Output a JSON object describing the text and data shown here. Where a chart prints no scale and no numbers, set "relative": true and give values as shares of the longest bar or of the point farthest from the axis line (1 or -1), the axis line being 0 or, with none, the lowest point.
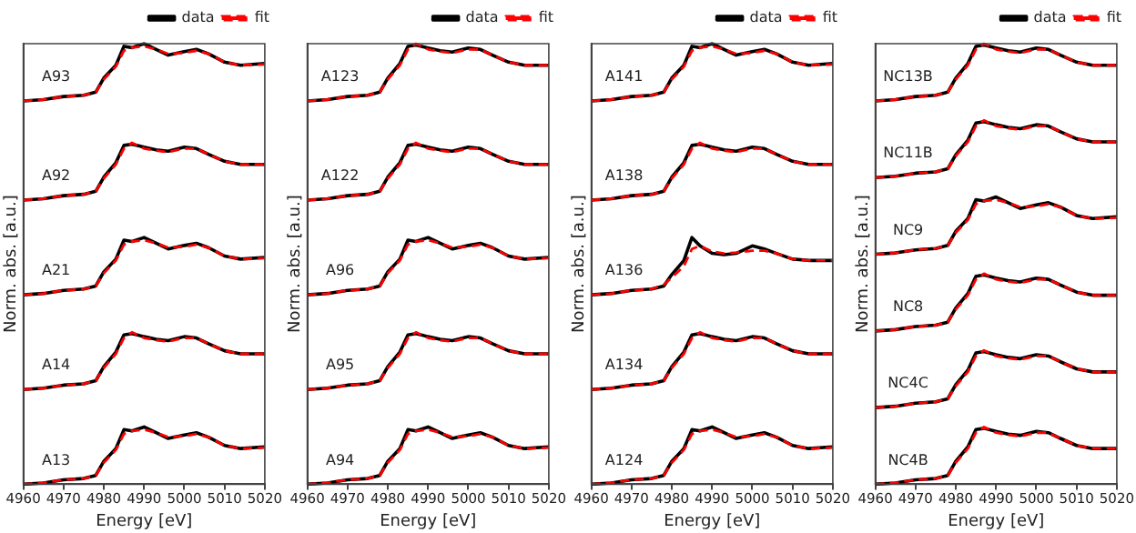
{
  "chart_data": [
    {
      "type": "line",
      "x": [
        4960,
        4965,
        4970,
        4975,
        4978,
        4980,
        4983,
        4985,
        4987,
        4990,
        4993,
        4996,
        5000,
        5003,
        5006,
        5010,
        5014,
        5020
      ],
      "xlim": [
        4960,
        5020
      ],
      "xticks": [
        4960,
        4970,
        4980,
        4990,
        5000,
        5010,
        5020
      ],
      "xlabel": "Energy [eV]",
      "ylabel": "Norm. abs. [a.u.]",
      "relative": true,
      "tick_labels": "x",
      "legend": "top right",
      "marker": "none",
      "grid": false,
      "series": [
        {
          "name": "data",
          "color": "#000000",
          "line_style": "solid",
          "values": [
            0.87,
            0.873,
            0.88,
            0.883,
            0.89,
            0.922,
            0.951,
            0.994,
            0.991,
            1.0,
            0.987,
            0.974,
            0.982,
            0.987,
            0.977,
            0.958,
            0.951,
            0.955
          ]
        },
        {
          "name": "fit",
          "color": "#ff0000",
          "line_style": "dashed",
          "values": [
            0.87,
            0.873,
            0.88,
            0.883,
            0.89,
            0.919,
            0.948,
            0.984,
            0.991,
            0.994,
            0.987,
            0.977,
            0.979,
            0.984,
            0.977,
            0.958,
            0.951,
            0.953
          ]
        },
        {
          "color": "#000000",
          "line_style": "solid",
          "values": [
            0.645,
            0.648,
            0.655,
            0.658,
            0.665,
            0.697,
            0.73,
            0.769,
            0.772,
            0.765,
            0.759,
            0.756,
            0.765,
            0.762,
            0.749,
            0.733,
            0.726,
            0.726
          ]
        },
        {
          "color": "#ff0000",
          "line_style": "dashed",
          "values": [
            0.645,
            0.648,
            0.655,
            0.658,
            0.665,
            0.694,
            0.726,
            0.762,
            0.775,
            0.762,
            0.757,
            0.754,
            0.762,
            0.762,
            0.749,
            0.733,
            0.726,
            0.726
          ]
        },
        {
          "color": "#000000",
          "line_style": "solid",
          "values": [
            0.43,
            0.433,
            0.44,
            0.443,
            0.45,
            0.482,
            0.511,
            0.554,
            0.551,
            0.56,
            0.547,
            0.534,
            0.542,
            0.547,
            0.537,
            0.518,
            0.511,
            0.515
          ]
        },
        {
          "color": "#ff0000",
          "line_style": "dashed",
          "values": [
            0.43,
            0.433,
            0.44,
            0.443,
            0.45,
            0.479,
            0.508,
            0.544,
            0.551,
            0.554,
            0.547,
            0.537,
            0.539,
            0.544,
            0.537,
            0.518,
            0.511,
            0.513
          ]
        },
        {
          "color": "#000000",
          "line_style": "solid",
          "values": [
            0.215,
            0.218,
            0.225,
            0.228,
            0.235,
            0.267,
            0.3,
            0.339,
            0.342,
            0.335,
            0.329,
            0.326,
            0.335,
            0.332,
            0.319,
            0.303,
            0.296,
            0.296
          ]
        },
        {
          "color": "#ff0000",
          "line_style": "dashed",
          "values": [
            0.215,
            0.218,
            0.225,
            0.228,
            0.235,
            0.264,
            0.296,
            0.332,
            0.345,
            0.332,
            0.327,
            0.324,
            0.332,
            0.332,
            0.319,
            0.303,
            0.296,
            0.296
          ]
        },
        {
          "color": "#000000",
          "line_style": "solid",
          "values": [
            0,
            0.003,
            0.01,
            0.013,
            0.02,
            0.052,
            0.081,
            0.124,
            0.121,
            0.13,
            0.117,
            0.104,
            0.112,
            0.117,
            0.107,
            0.088,
            0.081,
            0.085
          ]
        },
        {
          "color": "#ff0000",
          "line_style": "dashed",
          "values": [
            0,
            0.003,
            0.01,
            0.013,
            0.02,
            0.049,
            0.078,
            0.114,
            0.121,
            0.124,
            0.117,
            0.107,
            0.109,
            0.114,
            0.107,
            0.088,
            0.081,
            0.083
          ]
        }
      ],
      "annotations": [
        "A93",
        "A92",
        "A21",
        "A14",
        "A13"
      ]
    },
    {
      "type": "line",
      "x": [
        4960,
        4965,
        4970,
        4975,
        4978,
        4980,
        4983,
        4985,
        4987,
        4990,
        4993,
        4996,
        5000,
        5003,
        5006,
        5010,
        5014,
        5020
      ],
      "xlim": [
        4960,
        5020
      ],
      "xticks": [
        4960,
        4970,
        4980,
        4990,
        5000,
        5010,
        5020
      ],
      "xlabel": "Energy [eV]",
      "ylabel": "Norm. abs. [a.u.]",
      "relative": true,
      "tick_labels": "x",
      "legend": "top right",
      "marker": "none",
      "grid": false,
      "series": [
        {
          "name": "data",
          "color": "#000000",
          "line_style": "solid",
          "values": [
            0.87,
            0.873,
            0.88,
            0.883,
            0.89,
            0.922,
            0.955,
            0.994,
            0.997,
            0.99,
            0.984,
            0.981,
            0.99,
            0.987,
            0.974,
            0.958,
            0.951,
            0.951
          ]
        },
        {
          "name": "fit",
          "color": "#ff0000",
          "line_style": "dashed",
          "values": [
            0.87,
            0.873,
            0.88,
            0.883,
            0.89,
            0.919,
            0.951,
            0.987,
            1.0,
            0.987,
            0.982,
            0.979,
            0.987,
            0.987,
            0.974,
            0.958,
            0.951,
            0.951
          ]
        },
        {
          "color": "#000000",
          "line_style": "solid",
          "values": [
            0.645,
            0.648,
            0.655,
            0.658,
            0.665,
            0.697,
            0.73,
            0.769,
            0.772,
            0.765,
            0.759,
            0.756,
            0.765,
            0.762,
            0.749,
            0.733,
            0.726,
            0.726
          ]
        },
        {
          "color": "#ff0000",
          "line_style": "dashed",
          "values": [
            0.645,
            0.648,
            0.655,
            0.658,
            0.665,
            0.694,
            0.726,
            0.762,
            0.775,
            0.762,
            0.757,
            0.754,
            0.762,
            0.762,
            0.749,
            0.733,
            0.726,
            0.726
          ]
        },
        {
          "color": "#000000",
          "line_style": "solid",
          "values": [
            0.43,
            0.433,
            0.44,
            0.443,
            0.45,
            0.482,
            0.511,
            0.554,
            0.551,
            0.56,
            0.547,
            0.534,
            0.542,
            0.547,
            0.537,
            0.518,
            0.511,
            0.515
          ]
        },
        {
          "color": "#ff0000",
          "line_style": "dashed",
          "values": [
            0.43,
            0.433,
            0.44,
            0.443,
            0.45,
            0.479,
            0.508,
            0.544,
            0.551,
            0.554,
            0.547,
            0.537,
            0.539,
            0.544,
            0.537,
            0.518,
            0.511,
            0.513
          ]
        },
        {
          "color": "#000000",
          "line_style": "solid",
          "values": [
            0.215,
            0.218,
            0.225,
            0.228,
            0.235,
            0.267,
            0.3,
            0.339,
            0.342,
            0.335,
            0.329,
            0.326,
            0.335,
            0.332,
            0.319,
            0.303,
            0.296,
            0.296
          ]
        },
        {
          "color": "#ff0000",
          "line_style": "dashed",
          "values": [
            0.215,
            0.218,
            0.225,
            0.228,
            0.235,
            0.264,
            0.296,
            0.332,
            0.345,
            0.332,
            0.327,
            0.324,
            0.332,
            0.332,
            0.319,
            0.303,
            0.296,
            0.296
          ]
        },
        {
          "color": "#000000",
          "line_style": "solid",
          "values": [
            0,
            0.003,
            0.01,
            0.013,
            0.02,
            0.052,
            0.081,
            0.124,
            0.121,
            0.13,
            0.117,
            0.104,
            0.112,
            0.117,
            0.107,
            0.088,
            0.081,
            0.085
          ]
        },
        {
          "color": "#ff0000",
          "line_style": "dashed",
          "values": [
            0,
            0.003,
            0.01,
            0.013,
            0.02,
            0.049,
            0.078,
            0.114,
            0.121,
            0.124,
            0.117,
            0.107,
            0.109,
            0.114,
            0.107,
            0.088,
            0.081,
            0.083
          ]
        }
      ],
      "annotations": [
        "A123",
        "A122",
        "A96",
        "A95",
        "A94"
      ]
    },
    {
      "type": "line",
      "x": [
        4960,
        4965,
        4970,
        4975,
        4978,
        4980,
        4983,
        4985,
        4987,
        4990,
        4993,
        4996,
        5000,
        5003,
        5006,
        5010,
        5014,
        5020
      ],
      "xlim": [
        4960,
        5020
      ],
      "xticks": [
        4960,
        4970,
        4980,
        4990,
        5000,
        5010,
        5020
      ],
      "xlabel": "Energy [eV]",
      "ylabel": "Norm. abs. [a.u.]",
      "relative": true,
      "tick_labels": "x",
      "legend": "top right",
      "marker": "none",
      "grid": false,
      "series": [
        {
          "name": "data",
          "color": "#000000",
          "line_style": "solid",
          "values": [
            0.87,
            0.873,
            0.88,
            0.883,
            0.89,
            0.922,
            0.951,
            0.994,
            0.991,
            1.0,
            0.987,
            0.974,
            0.982,
            0.987,
            0.977,
            0.958,
            0.951,
            0.955
          ]
        },
        {
          "name": "fit",
          "color": "#ff0000",
          "line_style": "dashed",
          "values": [
            0.87,
            0.873,
            0.88,
            0.883,
            0.89,
            0.919,
            0.948,
            0.984,
            0.991,
            0.994,
            0.987,
            0.977,
            0.979,
            0.984,
            0.977,
            0.958,
            0.951,
            0.953
          ]
        },
        {
          "color": "#000000",
          "line_style": "solid",
          "values": [
            0.645,
            0.648,
            0.655,
            0.658,
            0.665,
            0.697,
            0.73,
            0.769,
            0.772,
            0.765,
            0.759,
            0.756,
            0.765,
            0.762,
            0.749,
            0.733,
            0.726,
            0.726
          ]
        },
        {
          "color": "#ff0000",
          "line_style": "dashed",
          "values": [
            0.645,
            0.648,
            0.655,
            0.658,
            0.665,
            0.694,
            0.726,
            0.762,
            0.775,
            0.762,
            0.757,
            0.754,
            0.762,
            0.762,
            0.749,
            0.733,
            0.726,
            0.726
          ]
        },
        {
          "color": "#000000",
          "line_style": "solid",
          "values": [
            0.43,
            0.433,
            0.44,
            0.443,
            0.45,
            0.476,
            0.508,
            0.56,
            0.541,
            0.524,
            0.521,
            0.524,
            0.541,
            0.534,
            0.524,
            0.511,
            0.508,
            0.508
          ]
        },
        {
          "color": "#ff0000",
          "line_style": "dashed",
          "values": [
            0.43,
            0.433,
            0.44,
            0.443,
            0.453,
            0.469,
            0.495,
            0.534,
            0.541,
            0.528,
            0.524,
            0.526,
            0.53,
            0.53,
            0.524,
            0.511,
            0.508,
            0.508
          ]
        },
        {
          "color": "#000000",
          "line_style": "solid",
          "values": [
            0.215,
            0.218,
            0.225,
            0.228,
            0.235,
            0.267,
            0.3,
            0.339,
            0.342,
            0.335,
            0.329,
            0.326,
            0.335,
            0.332,
            0.319,
            0.303,
            0.296,
            0.296
          ]
        },
        {
          "color": "#ff0000",
          "line_style": "dashed",
          "values": [
            0.215,
            0.218,
            0.225,
            0.228,
            0.235,
            0.264,
            0.296,
            0.332,
            0.345,
            0.332,
            0.327,
            0.324,
            0.332,
            0.332,
            0.319,
            0.303,
            0.296,
            0.296
          ]
        },
        {
          "color": "#000000",
          "line_style": "solid",
          "values": [
            0,
            0.003,
            0.01,
            0.013,
            0.02,
            0.052,
            0.081,
            0.124,
            0.121,
            0.13,
            0.117,
            0.104,
            0.112,
            0.117,
            0.107,
            0.088,
            0.081,
            0.085
          ]
        },
        {
          "color": "#ff0000",
          "line_style": "dashed",
          "values": [
            0,
            0.003,
            0.01,
            0.013,
            0.02,
            0.049,
            0.078,
            0.114,
            0.121,
            0.124,
            0.117,
            0.107,
            0.109,
            0.114,
            0.107,
            0.088,
            0.081,
            0.083
          ]
        }
      ],
      "annotations": [
        "A141",
        "A138",
        "A136",
        "A134",
        "A124"
      ]
    },
    {
      "type": "line",
      "x": [
        4960,
        4965,
        4970,
        4975,
        4978,
        4980,
        4983,
        4985,
        4987,
        4990,
        4993,
        4996,
        5000,
        5003,
        5006,
        5010,
        5014,
        5020
      ],
      "xlim": [
        4960,
        5020
      ],
      "xticks": [
        4960,
        4970,
        4980,
        4990,
        5000,
        5010,
        5020
      ],
      "xlabel": "Energy [eV]",
      "ylabel": "Norm. abs. [a.u.]",
      "relative": true,
      "tick_labels": "x",
      "legend": "top right",
      "marker": "none",
      "grid": false,
      "series": [
        {
          "name": "data",
          "color": "#000000",
          "line_style": "solid",
          "values": [
            0.87,
            0.873,
            0.88,
            0.883,
            0.89,
            0.922,
            0.955,
            0.994,
            0.997,
            0.99,
            0.984,
            0.981,
            0.99,
            0.987,
            0.974,
            0.958,
            0.951,
            0.951
          ]
        },
        {
          "name": "fit",
          "color": "#ff0000",
          "line_style": "dashed",
          "values": [
            0.87,
            0.873,
            0.88,
            0.883,
            0.89,
            0.919,
            0.951,
            0.987,
            1.0,
            0.987,
            0.982,
            0.979,
            0.987,
            0.987,
            0.974,
            0.958,
            0.951,
            0.951
          ]
        },
        {
          "color": "#000000",
          "line_style": "solid",
          "values": [
            0.696,
            0.699,
            0.706,
            0.709,
            0.716,
            0.748,
            0.781,
            0.82,
            0.823,
            0.816,
            0.81,
            0.807,
            0.816,
            0.813,
            0.8,
            0.784,
            0.777,
            0.777
          ]
        },
        {
          "color": "#ff0000",
          "line_style": "dashed",
          "values": [
            0.696,
            0.699,
            0.706,
            0.709,
            0.716,
            0.745,
            0.777,
            0.813,
            0.826,
            0.813,
            0.808,
            0.805,
            0.813,
            0.813,
            0.8,
            0.784,
            0.777,
            0.777
          ]
        },
        {
          "color": "#000000",
          "line_style": "solid",
          "values": [
            0.522,
            0.525,
            0.532,
            0.535,
            0.542,
            0.574,
            0.603,
            0.646,
            0.643,
            0.652,
            0.639,
            0.626,
            0.634,
            0.639,
            0.629,
            0.61,
            0.603,
            0.607
          ]
        },
        {
          "color": "#ff0000",
          "line_style": "dashed",
          "values": [
            0.522,
            0.525,
            0.532,
            0.535,
            0.542,
            0.571,
            0.6,
            0.636,
            0.643,
            0.646,
            0.639,
            0.629,
            0.631,
            0.636,
            0.629,
            0.61,
            0.603,
            0.605
          ]
        },
        {
          "color": "#000000",
          "line_style": "solid",
          "values": [
            0.348,
            0.351,
            0.358,
            0.361,
            0.368,
            0.4,
            0.433,
            0.472,
            0.475,
            0.468,
            0.462,
            0.459,
            0.468,
            0.465,
            0.452,
            0.436,
            0.429,
            0.429
          ]
        },
        {
          "color": "#ff0000",
          "line_style": "dashed",
          "values": [
            0.348,
            0.351,
            0.358,
            0.361,
            0.368,
            0.397,
            0.429,
            0.465,
            0.478,
            0.465,
            0.46,
            0.457,
            0.465,
            0.465,
            0.452,
            0.436,
            0.429,
            0.429
          ]
        },
        {
          "color": "#000000",
          "line_style": "solid",
          "values": [
            0.174,
            0.177,
            0.184,
            0.187,
            0.194,
            0.226,
            0.259,
            0.298,
            0.301,
            0.294,
            0.288,
            0.285,
            0.294,
            0.291,
            0.278,
            0.262,
            0.255,
            0.255
          ]
        },
        {
          "color": "#ff0000",
          "line_style": "dashed",
          "values": [
            0.174,
            0.177,
            0.184,
            0.187,
            0.194,
            0.223,
            0.255,
            0.291,
            0.304,
            0.291,
            0.286,
            0.283,
            0.291,
            0.291,
            0.278,
            0.262,
            0.255,
            0.255
          ]
        },
        {
          "color": "#000000",
          "line_style": "solid",
          "values": [
            0,
            0.003,
            0.01,
            0.013,
            0.02,
            0.052,
            0.085,
            0.124,
            0.127,
            0.12,
            0.114,
            0.111,
            0.12,
            0.117,
            0.104,
            0.088,
            0.081,
            0.081
          ]
        },
        {
          "color": "#ff0000",
          "line_style": "dashed",
          "values": [
            0,
            0.003,
            0.01,
            0.013,
            0.02,
            0.049,
            0.081,
            0.117,
            0.13,
            0.117,
            0.112,
            0.109,
            0.117,
            0.117,
            0.104,
            0.088,
            0.081,
            0.081
          ]
        }
      ],
      "annotations": [
        "NC13B",
        "NC11B",
        "NC9",
        "NC8",
        "NC4C",
        "NC4B"
      ]
    }
  ]
}
